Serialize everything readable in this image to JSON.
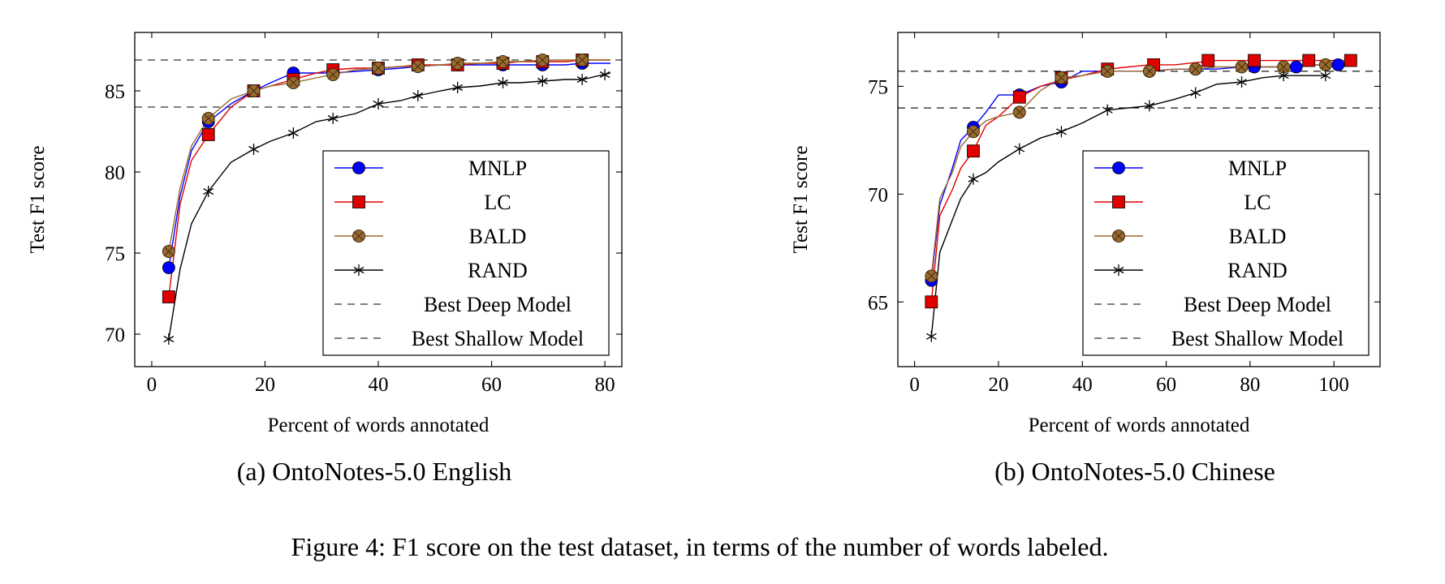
{
  "figure_caption": "Figure 4: F1 score on the test dataset, in terms of the number of words labeled.",
  "chart_data": [
    {
      "type": "line",
      "caption": "(a) OntoNotes-5.0 English",
      "xlabel": "Percent of words annotated",
      "ylabel": "Test F1 score",
      "xlim": [
        -3,
        83
      ],
      "ylim": [
        68,
        88.6
      ],
      "xticks": [
        0,
        20,
        40,
        60,
        80
      ],
      "yticks": [
        70,
        75,
        80,
        85
      ],
      "grid": false,
      "legend_position": "bottom-right",
      "series": [
        {
          "name": "MNLP",
          "color": "#0000ff",
          "marker": "circle",
          "x": [
            3,
            5,
            7,
            10,
            14,
            18,
            21,
            25,
            29,
            32,
            36,
            40,
            44,
            47,
            51,
            54,
            58,
            62,
            65,
            69,
            73,
            76,
            81
          ],
          "y": [
            74.1,
            78.5,
            81.3,
            83.1,
            84.2,
            85.0,
            85.5,
            86.1,
            86.1,
            86.1,
            86.2,
            86.3,
            86.4,
            86.5,
            86.6,
            86.6,
            86.6,
            86.6,
            86.6,
            86.6,
            86.6,
            86.7,
            86.7
          ],
          "marker_x": [
            3,
            10,
            25,
            40,
            47,
            54,
            62,
            69,
            76
          ],
          "marker_y": [
            74.1,
            83.1,
            86.1,
            86.3,
            86.5,
            86.6,
            86.6,
            86.6,
            86.7
          ]
        },
        {
          "name": "LC",
          "color": "#e00000",
          "marker": "square",
          "x": [
            3,
            5,
            7,
            10,
            14,
            18,
            21,
            25,
            29,
            32,
            36,
            40,
            44,
            47,
            51,
            54,
            58,
            62,
            65,
            69,
            73,
            76,
            81
          ],
          "y": [
            72.3,
            78.0,
            80.7,
            82.3,
            84.0,
            85.0,
            85.3,
            85.7,
            86.1,
            86.3,
            86.4,
            86.4,
            86.5,
            86.6,
            86.6,
            86.6,
            86.7,
            86.7,
            86.8,
            86.8,
            86.8,
            86.9,
            86.9
          ],
          "marker_x": [
            3,
            10,
            18,
            25,
            32,
            40,
            47,
            54,
            62,
            69,
            76
          ],
          "marker_y": [
            72.3,
            82.3,
            85.0,
            85.7,
            86.3,
            86.4,
            86.6,
            86.6,
            86.7,
            86.8,
            86.9
          ]
        },
        {
          "name": "BALD",
          "color": "#9b6a2f",
          "marker": "circle-x",
          "x": [
            3,
            5,
            7,
            10,
            14,
            18,
            21,
            25,
            29,
            32,
            36,
            40,
            44,
            47,
            51,
            54,
            58,
            62,
            65,
            69,
            73,
            76,
            81
          ],
          "y": [
            75.1,
            79.0,
            81.6,
            83.3,
            84.5,
            85.0,
            85.3,
            85.5,
            85.8,
            86.0,
            86.3,
            86.4,
            86.5,
            86.5,
            86.6,
            86.7,
            86.7,
            86.8,
            86.8,
            86.9,
            86.9,
            86.9,
            86.9
          ],
          "marker_x": [
            3,
            10,
            18,
            25,
            32,
            40,
            47,
            54,
            62,
            69,
            76
          ],
          "marker_y": [
            75.1,
            83.3,
            85.0,
            85.5,
            86.0,
            86.4,
            86.5,
            86.7,
            86.8,
            86.9,
            86.9
          ]
        },
        {
          "name": "RAND",
          "color": "#000000",
          "marker": "star",
          "x": [
            3,
            5,
            7,
            10,
            14,
            18,
            21,
            25,
            29,
            32,
            36,
            40,
            44,
            47,
            51,
            54,
            58,
            62,
            65,
            69,
            73,
            76,
            81
          ],
          "y": [
            69.7,
            74.0,
            76.8,
            78.8,
            80.6,
            81.4,
            81.9,
            82.4,
            83.1,
            83.3,
            83.6,
            84.2,
            84.4,
            84.7,
            85.0,
            85.2,
            85.3,
            85.5,
            85.5,
            85.6,
            85.7,
            85.7,
            86.1
          ],
          "marker_x": [
            3,
            10,
            18,
            25,
            32,
            40,
            47,
            54,
            62,
            69,
            76,
            80
          ],
          "marker_y": [
            69.7,
            78.8,
            81.4,
            82.4,
            83.3,
            84.2,
            84.7,
            85.2,
            85.5,
            85.6,
            85.7,
            86.0
          ]
        }
      ],
      "reference_lines": [
        {
          "name": "Best Deep Model",
          "y": 86.9
        },
        {
          "name": "Best Shallow Model",
          "y": 84.0
        }
      ]
    },
    {
      "type": "line",
      "caption": "(b) OntoNotes-5.0 Chinese",
      "xlabel": "Percent of words annotated",
      "ylabel": "Test F1 score",
      "xlim": [
        -4,
        111
      ],
      "ylim": [
        62,
        77.5
      ],
      "xticks": [
        0,
        20,
        40,
        60,
        80,
        100
      ],
      "yticks": [
        65,
        70,
        75
      ],
      "grid": false,
      "legend_position": "bottom-right",
      "series": [
        {
          "name": "MNLP",
          "color": "#0000ff",
          "marker": "circle",
          "x": [
            4,
            6,
            9,
            11,
            14,
            17,
            20,
            25,
            30,
            35,
            40,
            46,
            51,
            56,
            62,
            67,
            72,
            78,
            81,
            86,
            91,
            96,
            101
          ],
          "y": [
            66.0,
            69.5,
            71.2,
            72.5,
            73.1,
            73.8,
            74.6,
            74.6,
            75.0,
            75.2,
            75.7,
            75.7,
            75.7,
            75.7,
            75.8,
            75.8,
            75.8,
            75.9,
            75.9,
            75.9,
            75.9,
            76.0,
            76.0
          ],
          "marker_x": [
            4,
            14,
            25,
            35,
            46,
            56,
            67,
            81,
            91,
            101
          ],
          "marker_y": [
            66.0,
            73.1,
            74.6,
            75.2,
            75.7,
            75.7,
            75.8,
            75.9,
            75.9,
            76.0
          ]
        },
        {
          "name": "LC",
          "color": "#e00000",
          "marker": "square",
          "x": [
            4,
            6,
            9,
            11,
            14,
            17,
            20,
            25,
            30,
            35,
            40,
            46,
            51,
            56,
            62,
            67,
            72,
            78,
            81,
            86,
            94,
            98,
            104
          ],
          "y": [
            65.0,
            69.0,
            70.2,
            71.2,
            72.0,
            73.2,
            73.6,
            74.5,
            75.0,
            75.3,
            75.5,
            75.8,
            75.9,
            76.0,
            76.0,
            76.1,
            76.2,
            76.2,
            76.2,
            76.2,
            76.2,
            76.2,
            76.2
          ],
          "marker_x": [
            4,
            14,
            25,
            35,
            46,
            57,
            70,
            81,
            94,
            104
          ],
          "marker_y": [
            65.0,
            72.0,
            74.5,
            75.4,
            75.8,
            76.0,
            76.2,
            76.2,
            76.2,
            76.2
          ]
        },
        {
          "name": "BALD",
          "color": "#9b6a2f",
          "marker": "circle-x",
          "x": [
            4,
            6,
            9,
            11,
            14,
            17,
            20,
            25,
            30,
            35,
            40,
            46,
            51,
            56,
            62,
            67,
            72,
            78,
            83,
            88,
            93,
            98
          ],
          "y": [
            66.2,
            69.8,
            71.0,
            72.2,
            72.9,
            73.4,
            73.6,
            73.8,
            74.8,
            75.4,
            75.5,
            75.7,
            75.7,
            75.7,
            75.8,
            75.8,
            75.9,
            75.9,
            75.9,
            75.9,
            76.0,
            76.0
          ],
          "marker_x": [
            4,
            14,
            25,
            35,
            46,
            56,
            67,
            78,
            88,
            98
          ],
          "marker_y": [
            66.2,
            72.9,
            73.8,
            75.4,
            75.7,
            75.7,
            75.8,
            75.9,
            75.9,
            76.0
          ]
        },
        {
          "name": "RAND",
          "color": "#000000",
          "marker": "star",
          "x": [
            4,
            6,
            9,
            11,
            14,
            17,
            20,
            25,
            30,
            35,
            40,
            46,
            51,
            56,
            62,
            67,
            72,
            78,
            83,
            88,
            93,
            98
          ],
          "y": [
            63.4,
            67.3,
            68.8,
            69.8,
            70.7,
            71.0,
            71.5,
            72.1,
            72.6,
            72.9,
            73.3,
            73.9,
            74.0,
            74.1,
            74.4,
            74.7,
            75.1,
            75.2,
            75.4,
            75.5,
            75.5,
            75.5
          ],
          "marker_x": [
            4,
            14,
            25,
            35,
            46,
            56,
            67,
            78,
            88,
            98
          ],
          "marker_y": [
            63.4,
            70.7,
            72.1,
            72.9,
            73.9,
            74.1,
            74.7,
            75.2,
            75.5,
            75.5
          ]
        }
      ],
      "reference_lines": [
        {
          "name": "Best Deep Model",
          "y": 75.7
        },
        {
          "name": "Best Shallow Model",
          "y": 74.0
        }
      ]
    }
  ]
}
